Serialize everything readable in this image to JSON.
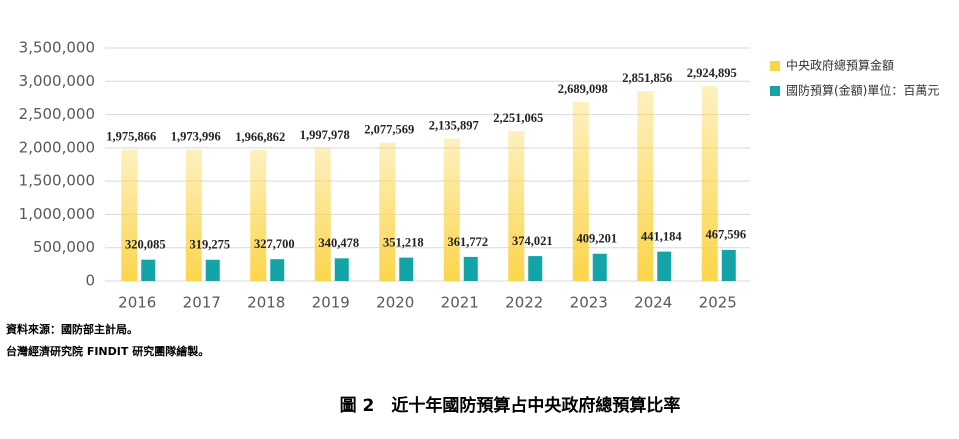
{
  "chart_data": {
    "type": "bar",
    "categories": [
      "2016",
      "2017",
      "2018",
      "2019",
      "2020",
      "2021",
      "2022",
      "2023",
      "2024",
      "2025"
    ],
    "series": [
      {
        "name": "中央政府總預算金額",
        "color": "#fbd54a",
        "values": [
          1975866,
          1973996,
          1966862,
          1997978,
          2077569,
          2135897,
          2251065,
          2689098,
          2851856,
          2924895
        ],
        "value_labels": [
          "1,975,866",
          "1,973,996",
          "1,966,862",
          "1,997,978",
          "2,077,569",
          "2,135,897",
          "2,251,065",
          "2,689,098",
          "2,851,856",
          "2,924,895"
        ]
      },
      {
        "name": "國防預算(金額)單位：百萬元",
        "color": "#14a3a6",
        "values": [
          320085,
          319275,
          327700,
          340478,
          351218,
          361772,
          374021,
          409201,
          441184,
          467596
        ],
        "value_labels": [
          "320,085",
          "319,275",
          "327,700",
          "340,478",
          "351,218",
          "361,772",
          "374,021",
          "409,201",
          "441,184",
          "467,596"
        ]
      }
    ],
    "ylim": [
      0,
      3500000
    ],
    "yticks": [
      0,
      {
        "value": 500000,
        "label": "500,000"
      },
      {
        "value": 1000000,
        "label": "1,000,000"
      },
      {
        "value": 1500000,
        "label": "1,500,000"
      },
      {
        "value": 2000000,
        "label": "2,000,000"
      },
      {
        "value": 2500000,
        "label": "2,500,000"
      },
      {
        "value": 3000000,
        "label": "3,000,000"
      },
      {
        "value": 3500000,
        "label": "3,500,000"
      }
    ],
    "grid": true,
    "legend": "right",
    "notes": [
      "資料來源：國防部主計局。",
      "台灣經濟研究院 FINDIT 研究團隊繪製。"
    ],
    "caption": "圖 2　近十年國防預算占中央政府總預算比率"
  }
}
